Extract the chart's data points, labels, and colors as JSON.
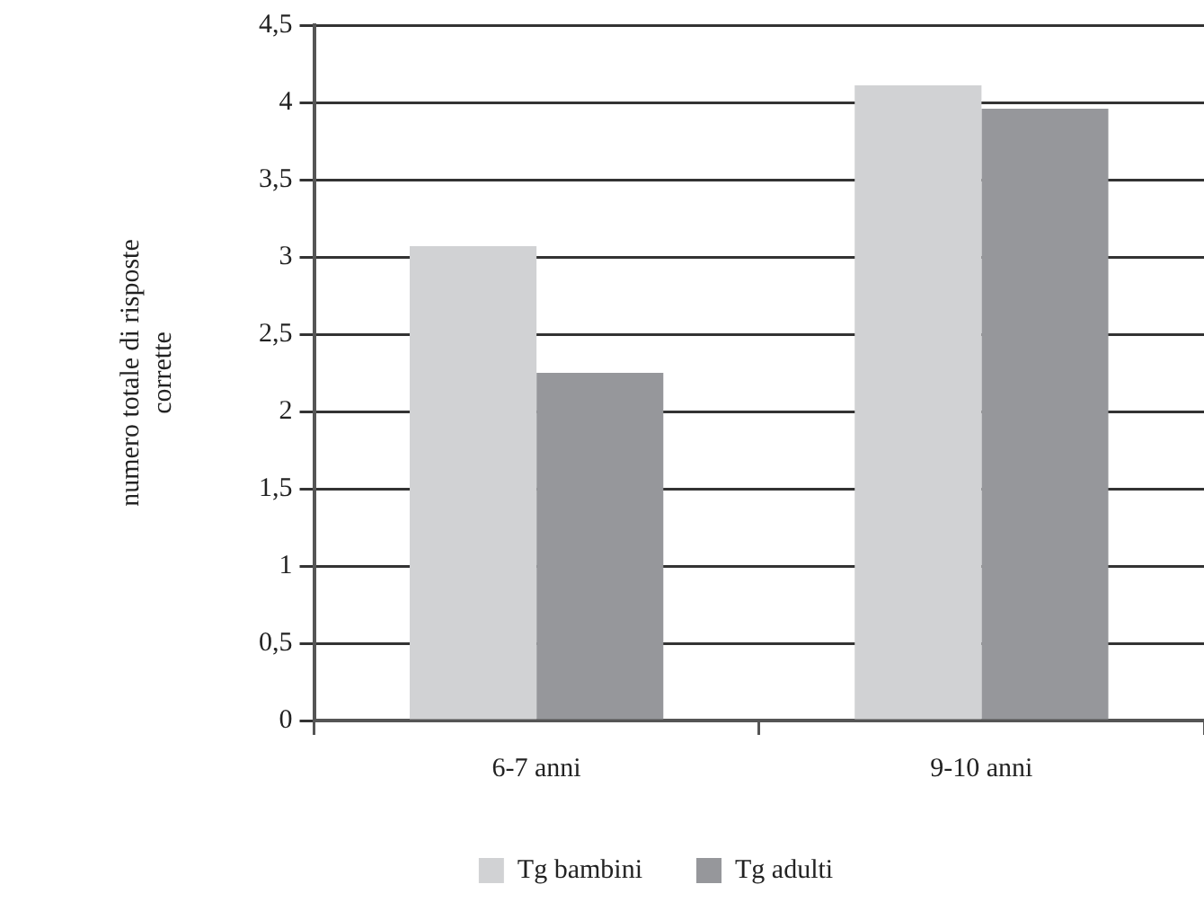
{
  "chart_data": {
    "type": "bar",
    "ylabel": "numero totale di risposte corrette",
    "categories": [
      "6-7 anni",
      "9-10 anni"
    ],
    "series": [
      {
        "name": "Tg bambini",
        "color": "#d1d2d4",
        "values": [
          3.07,
          4.11
        ]
      },
      {
        "name": "Tg adulti",
        "color": "#96979b",
        "values": [
          2.25,
          3.96
        ]
      }
    ],
    "ylim": [
      0,
      4.5
    ],
    "yticks": [
      0,
      {
        "value": 0.5,
        "label": "0,5"
      },
      1,
      {
        "value": 1.5,
        "label": "1,5"
      },
      2,
      {
        "value": 2.5,
        "label": "2,5"
      },
      3,
      {
        "value": 3.5,
        "label": "3,5"
      },
      4,
      {
        "value": 4.5,
        "label": "4,5"
      }
    ],
    "grid": "y",
    "legend": "bottom"
  }
}
